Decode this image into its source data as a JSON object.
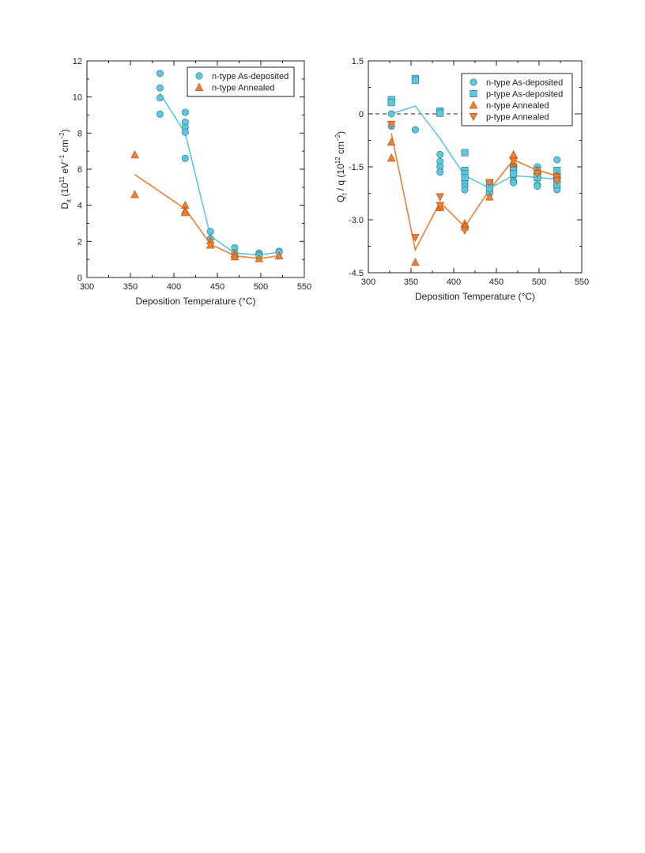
{
  "chart_data": [
    {
      "type": "scatter",
      "xlabel": "Deposition Temperature (°C)",
      "ylabel": "D_it (10^11 eV^-1 cm^-2)",
      "ylabel_parts": {
        "main": "D",
        "sub": "it",
        "open": " (10",
        "sup1": "11",
        "mid": " eV",
        "sup2": "−1",
        "mid2": " cm",
        "sup3": "−2",
        "close": ")"
      },
      "xlim": [
        300,
        550
      ],
      "ylim": [
        0,
        12
      ],
      "xticks": [
        300,
        350,
        400,
        450,
        500,
        550
      ],
      "yticks": [
        0,
        2,
        4,
        6,
        8,
        10,
        12
      ],
      "ytick_labels": [
        "0",
        "2",
        "4",
        "6",
        "8",
        "10",
        "12"
      ],
      "grid": false,
      "legend_position": "top-right",
      "series": [
        {
          "name": "n-type As-deposited",
          "marker": "circle",
          "color": "#5bc8e0",
          "points": [
            [
              384,
              11.3
            ],
            [
              384,
              10.5
            ],
            [
              384,
              9.95
            ],
            [
              384,
              9.05
            ],
            [
              413,
              9.15
            ],
            [
              413,
              8.6
            ],
            [
              413,
              8.3
            ],
            [
              413,
              8.05
            ],
            [
              413,
              6.6
            ],
            [
              442,
              2.55
            ],
            [
              442,
              2.15
            ],
            [
              470,
              1.65
            ],
            [
              470,
              1.35
            ],
            [
              470,
              1.15
            ],
            [
              498,
              1.35
            ],
            [
              498,
              1.3
            ],
            [
              498,
              1.2
            ],
            [
              521,
              1.45
            ],
            [
              521,
              1.4
            ]
          ],
          "line": [
            [
              384,
              10.2
            ],
            [
              413,
              8.0
            ],
            [
              442,
              2.3
            ],
            [
              470,
              1.35
            ],
            [
              498,
              1.25
            ],
            [
              521,
              1.4
            ]
          ]
        },
        {
          "name": "n-type Annealed",
          "marker": "triangle-up",
          "color": "#f07f2e",
          "points": [
            [
              355,
              6.8
            ],
            [
              355,
              4.6
            ],
            [
              413,
              4.0
            ],
            [
              413,
              3.7
            ],
            [
              413,
              3.6
            ],
            [
              442,
              2.05
            ],
            [
              442,
              1.8
            ],
            [
              470,
              1.3
            ],
            [
              470,
              1.15
            ],
            [
              498,
              1.05
            ],
            [
              521,
              1.2
            ]
          ],
          "line": [
            [
              355,
              5.7
            ],
            [
              413,
              3.8
            ],
            [
              442,
              1.85
            ],
            [
              470,
              1.2
            ],
            [
              498,
              1.05
            ],
            [
              521,
              1.2
            ]
          ]
        }
      ]
    },
    {
      "type": "scatter",
      "xlabel": "Deposition Temperature (°C)",
      "ylabel": "Q_f / q (10^12 cm^-2)",
      "ylabel_parts": {
        "main": "Q",
        "sub": "f",
        "open": " / q (10",
        "sup1": "12",
        "mid": " cm",
        "sup2": "−2",
        "close": ")"
      },
      "xlim": [
        300,
        550
      ],
      "ylim": [
        -4.5,
        1.5
      ],
      "xticks": [
        300,
        350,
        400,
        450,
        500,
        550
      ],
      "yticks": [
        -4.5,
        -3.0,
        -1.5,
        0,
        1.5
      ],
      "ytick_labels": [
        "-4.5",
        "-3.0",
        "-1.5",
        "0",
        "1.5"
      ],
      "zero_line": true,
      "grid": false,
      "legend_position": "top-right",
      "series": [
        {
          "name": "n-type As-deposited",
          "marker": "circle",
          "color": "#5bc8e0",
          "points": [
            [
              327,
              0.0
            ],
            [
              327,
              -0.35
            ],
            [
              355,
              -0.45
            ],
            [
              384,
              -1.15
            ],
            [
              384,
              -1.35
            ],
            [
              384,
              -1.5
            ],
            [
              384,
              -1.65
            ],
            [
              413,
              -1.95
            ],
            [
              413,
              -2.05
            ],
            [
              413,
              -2.15
            ],
            [
              442,
              -2.15
            ],
            [
              442,
              -2.25
            ],
            [
              470,
              -1.75
            ],
            [
              470,
              -1.9
            ],
            [
              470,
              -1.95
            ],
            [
              498,
              -1.5
            ],
            [
              498,
              -1.6
            ],
            [
              498,
              -1.7
            ],
            [
              498,
              -2.0
            ],
            [
              498,
              -2.05
            ],
            [
              521,
              -1.3
            ],
            [
              521,
              -2.05
            ],
            [
              521,
              -2.15
            ]
          ],
          "line": [
            [
              327,
              0.0
            ],
            [
              355,
              0.22
            ],
            [
              384,
              -0.7
            ],
            [
              413,
              -1.75
            ],
            [
              442,
              -2.1
            ],
            [
              470,
              -1.75
            ],
            [
              498,
              -1.8
            ],
            [
              521,
              -1.85
            ]
          ]
        },
        {
          "name": "p-type As-deposited",
          "marker": "square",
          "color": "#5bc8e0",
          "points": [
            [
              327,
              0.4
            ],
            [
              327,
              0.32
            ],
            [
              355,
              1.0
            ],
            [
              355,
              0.95
            ],
            [
              384,
              0.08
            ],
            [
              384,
              0.02
            ],
            [
              413,
              -1.1
            ],
            [
              413,
              -1.6
            ],
            [
              413,
              -1.7
            ],
            [
              413,
              -1.8
            ],
            [
              442,
              -1.95
            ],
            [
              442,
              -2.1
            ],
            [
              470,
              -1.5
            ],
            [
              470,
              -1.6
            ],
            [
              470,
              -1.7
            ],
            [
              498,
              -1.6
            ],
            [
              498,
              -1.75
            ],
            [
              498,
              -1.8
            ],
            [
              521,
              -1.6
            ],
            [
              521,
              -1.85
            ],
            [
              521,
              -2.0
            ]
          ]
        },
        {
          "name": "n-type Annealed",
          "marker": "triangle-up",
          "color": "#f07f2e",
          "points": [
            [
              327,
              -0.8
            ],
            [
              327,
              -1.25
            ],
            [
              355,
              -4.2
            ],
            [
              384,
              -2.6
            ],
            [
              384,
              -2.65
            ],
            [
              413,
              -3.1
            ],
            [
              413,
              -3.2
            ],
            [
              442,
              -2.35
            ],
            [
              470,
              -1.15
            ],
            [
              470,
              -1.4
            ],
            [
              498,
              -1.6
            ],
            [
              521,
              -1.75
            ]
          ],
          "line": [
            [
              327,
              -0.55
            ],
            [
              355,
              -3.85
            ],
            [
              384,
              -2.5
            ],
            [
              413,
              -3.2
            ],
            [
              442,
              -2.15
            ],
            [
              470,
              -1.3
            ],
            [
              498,
              -1.6
            ],
            [
              521,
              -1.75
            ]
          ]
        },
        {
          "name": "p-type Annealed",
          "marker": "triangle-down",
          "color": "#f07f2e",
          "points": [
            [
              327,
              -0.3
            ],
            [
              355,
              -3.5
            ],
            [
              384,
              -2.35
            ],
            [
              384,
              -2.6
            ],
            [
              413,
              -3.3
            ],
            [
              442,
              -1.95
            ],
            [
              470,
              -1.35
            ],
            [
              498,
              -1.7
            ],
            [
              521,
              -1.8
            ],
            [
              521,
              -1.9
            ]
          ]
        }
      ]
    }
  ]
}
